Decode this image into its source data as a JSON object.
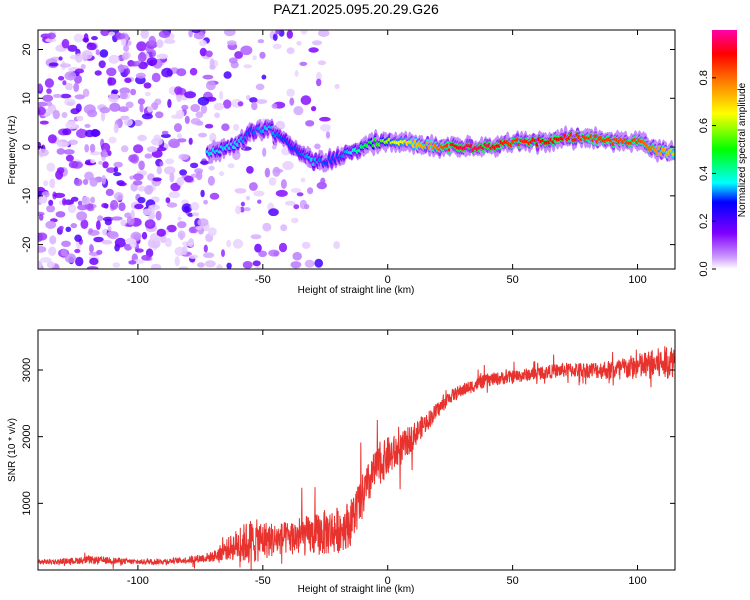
{
  "title": "PAZ1.2025.095.20.29.G26",
  "chart_data": [
    {
      "type": "heatmap",
      "xlabel": "Height of straight line (km)",
      "ylabel": "Frequency (Hz)",
      "xlim": [
        -140,
        115
      ],
      "ylim": [
        -25,
        24
      ],
      "xticks": [
        -100,
        -50,
        0,
        50,
        100
      ],
      "yticks": [
        -20,
        -10,
        0,
        10,
        20
      ],
      "colorbar": {
        "label": "Normalized spectral amplitude",
        "range": [
          0,
          1
        ],
        "ticks": [
          0.0,
          0.2,
          0.4,
          0.6,
          0.8
        ],
        "tick_labels": [
          "0.0",
          "0.2",
          "0.4",
          "0.6",
          "0.8"
        ],
        "colormap": [
          "#ffffff",
          "#cc99ff",
          "#7f00ff",
          "#0000ff",
          "#00ffff",
          "#00ff00",
          "#ffff00",
          "#ff8000",
          "#ff0000",
          "#ff00aa"
        ]
      },
      "ridge": {
        "x": [
          -72,
          -60,
          -55,
          -48,
          -42,
          -36,
          -30,
          -25,
          -20,
          -15,
          -10,
          -5,
          0,
          10,
          20,
          30,
          40,
          50,
          60,
          70,
          80,
          90,
          100,
          105,
          110,
          115
        ],
        "frequency": [
          -1,
          0.5,
          3,
          4,
          2,
          -1,
          -3,
          -3,
          -2,
          -1,
          0,
          1,
          1,
          1,
          0,
          0,
          0,
          1,
          1,
          2,
          2,
          1,
          1,
          0,
          -1,
          -1
        ],
        "amplitude": [
          0.35,
          0.35,
          0.3,
          0.35,
          0.3,
          0.3,
          0.35,
          0.3,
          0.3,
          0.35,
          0.45,
          0.5,
          0.6,
          0.7,
          0.8,
          0.95,
          0.95,
          0.85,
          0.9,
          0.9,
          0.85,
          0.85,
          0.85,
          0.8,
          0.75,
          0.7
        ]
      },
      "noise_region": {
        "x_start": -140,
        "x_end": -20,
        "amplitude": 0.15
      }
    },
    {
      "type": "line",
      "xlabel": "Height of straight line (km)",
      "ylabel": "SNR (10 * v/v)",
      "xlim": [
        -140,
        115
      ],
      "ylim": [
        0,
        3600
      ],
      "xticks": [
        -100,
        -50,
        0,
        50,
        100
      ],
      "yticks": [
        1000,
        2000,
        3000
      ],
      "color": "#e8322e",
      "x": [
        -140,
        -130,
        -120,
        -110,
        -100,
        -90,
        -80,
        -70,
        -65,
        -60,
        -55,
        -50,
        -45,
        -40,
        -35,
        -30,
        -25,
        -20,
        -15,
        -10,
        -5,
        0,
        5,
        10,
        15,
        20,
        25,
        30,
        40,
        50,
        60,
        70,
        80,
        90,
        100,
        110,
        115
      ],
      "y": [
        120,
        130,
        150,
        140,
        120,
        130,
        150,
        200,
        300,
        380,
        420,
        450,
        460,
        480,
        500,
        520,
        560,
        600,
        700,
        1100,
        1500,
        1700,
        1800,
        2000,
        2200,
        2400,
        2600,
        2700,
        2850,
        2900,
        2950,
        3000,
        3000,
        3000,
        3050,
        3100,
        3150
      ],
      "noise": [
        40,
        40,
        60,
        50,
        40,
        40,
        50,
        80,
        150,
        250,
        350,
        300,
        250,
        250,
        300,
        300,
        350,
        350,
        350,
        350,
        300,
        300,
        250,
        200,
        150,
        120,
        100,
        100,
        100,
        100,
        100,
        110,
        120,
        150,
        200,
        250,
        250
      ]
    }
  ]
}
